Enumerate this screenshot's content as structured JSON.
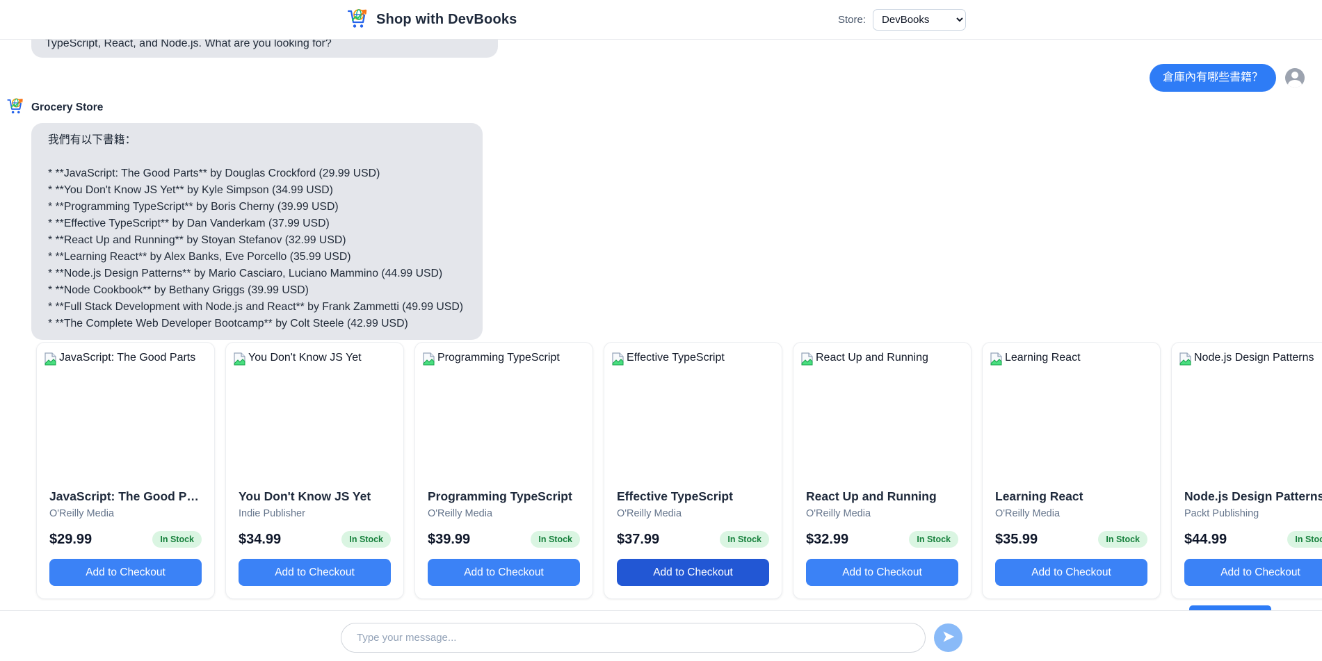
{
  "colors": {
    "accent_blue": "#3b82f6",
    "accent_blue_hover": "#2257d4",
    "user_bubble_blue": "#2e7cf6",
    "bubble_gray": "#e4e6eb",
    "badge_bg": "#daf5e2",
    "badge_text": "#16803c",
    "send_button_bg": "#89baf8"
  },
  "header": {
    "logo_icon": "cart-globe-arrow-logo",
    "title": "Shop with DevBooks",
    "store_label": "Store:",
    "store_value": "DevBooks"
  },
  "chat": {
    "previous_message_partial": "TypeScript, React, and Node.js. What are you looking for?",
    "user_message": "倉庫內有哪些書籍？",
    "user_avatar_icon": "person-icon",
    "assistant_name": "Grocery Store",
    "assistant_icon": "cart-globe-arrow-logo",
    "assistant_message_intro": "我們有以下書籍：",
    "book_list": [
      "* **JavaScript: The Good Parts** by Douglas Crockford (29.99 USD)",
      "* **You Don't Know JS Yet** by Kyle Simpson (34.99 USD)",
      "* **Programming TypeScript** by Boris Cherny (39.99 USD)",
      "* **Effective TypeScript** by Dan Vanderkam (37.99 USD)",
      "* **React Up and Running** by Stoyan Stefanov (32.99 USD)",
      "* **Learning React** by Alex Banks, Eve Porcello (35.99 USD)",
      "* **Node.js Design Patterns** by Mario Casciaro, Luciano Mammino (44.99 USD)",
      "* **Node Cookbook** by Bethany Griggs (39.99 USD)",
      "* **Full Stack Development with Node.js and React** by Frank Zammetti (49.99 USD)",
      "* **The Complete Web Developer Bootcamp** by Colt Steele (42.99 USD)"
    ]
  },
  "products": [
    {
      "image_alt": "JavaScript: The Good Parts",
      "title": "JavaScript: The Good Parts",
      "publisher": "O'Reilly Media",
      "price": "$29.99",
      "stock": "In Stock",
      "button": "Add to Checkout",
      "button_state": "default"
    },
    {
      "image_alt": "You Don't Know JS Yet",
      "title": "You Don't Know JS Yet",
      "publisher": "Indie Publisher",
      "price": "$34.99",
      "stock": "In Stock",
      "button": "Add to Checkout",
      "button_state": "default"
    },
    {
      "image_alt": "Programming TypeScript",
      "title": "Programming TypeScript",
      "publisher": "O'Reilly Media",
      "price": "$39.99",
      "stock": "In Stock",
      "button": "Add to Checkout",
      "button_state": "default"
    },
    {
      "image_alt": "Effective TypeScript",
      "title": "Effective TypeScript",
      "publisher": "O'Reilly Media",
      "price": "$37.99",
      "stock": "In Stock",
      "button": "Add to Checkout",
      "button_state": "hover"
    },
    {
      "image_alt": "React Up and Running",
      "title": "React Up and Running",
      "publisher": "O'Reilly Media",
      "price": "$32.99",
      "stock": "In Stock",
      "button": "Add to Checkout",
      "button_state": "default"
    },
    {
      "image_alt": "Learning React",
      "title": "Learning React",
      "publisher": "O'Reilly Media",
      "price": "$35.99",
      "stock": "In Stock",
      "button": "Add to Checkout",
      "button_state": "default"
    },
    {
      "image_alt": "Node.js Design Patterns",
      "title": "Node.js Design Patterns",
      "publisher": "Packt Publishing",
      "price": "$44.99",
      "stock": "In Stock",
      "button": "Add to Checkout",
      "button_state": "default"
    }
  ],
  "composer": {
    "placeholder": "Type your message...",
    "send_icon": "send-icon"
  }
}
